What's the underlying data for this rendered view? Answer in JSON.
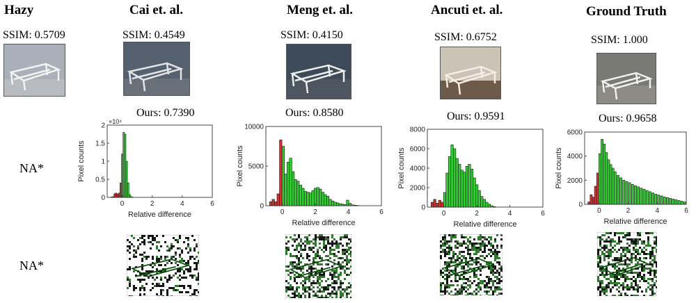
{
  "columns": [
    {
      "key": "hazy",
      "title": "Hazy",
      "ssim": "SSIM: 0.5709"
    },
    {
      "key": "cai",
      "title": "Cai et. al.",
      "ssim": "SSIM: 0.4549",
      "ours": "Ours: 0.7390"
    },
    {
      "key": "meng",
      "title": "Meng et. al.",
      "ssim": "SSIM: 0.4150",
      "ours": "Ours: 0.8580"
    },
    {
      "key": "ancuti",
      "title": "Ancuti et. al.",
      "ssim": "SSIM: 0.6752",
      "ours": "Ours: 0.9591"
    },
    {
      "key": "gt",
      "title": "Ground Truth",
      "ssim": "SSIM: 1.000",
      "ours": "Ours: 0.9658"
    }
  ],
  "na_labels": [
    "NA*",
    "NA*"
  ],
  "colors": {
    "positive_bar": "#33cc33",
    "negative_bar": "#cc3333",
    "axis": "#444444"
  },
  "chart_data": [
    {
      "type": "bar",
      "panel": "Cai et. al.",
      "xlabel": "Relative difference",
      "ylabel": "Pixel counts",
      "xlim": [
        -1,
        6
      ],
      "ylim": [
        0,
        20000
      ],
      "y_multiplier_label": "×10⁴",
      "xticks": [
        "0",
        "2",
        "4",
        "6"
      ],
      "yticks": [
        "0",
        "0.5",
        "1",
        "1.5",
        "2"
      ],
      "x": [
        -0.7,
        -0.6,
        -0.5,
        -0.4,
        -0.3,
        -0.2,
        -0.1,
        0.0,
        0.1,
        0.2,
        0.3,
        0.4,
        0.5,
        0.6,
        0.7
      ],
      "values": [
        100,
        200,
        1000,
        1200,
        900,
        1200,
        4000,
        12000,
        18000,
        17500,
        10000,
        4000,
        800,
        200,
        50
      ]
    },
    {
      "type": "bar",
      "panel": "Meng et. al.",
      "xlabel": "Relative difference",
      "ylabel": "Pixel counts",
      "xlim": [
        -1,
        6
      ],
      "ylim": [
        0,
        10000
      ],
      "xticks": [
        "0",
        "2",
        "4",
        "6"
      ],
      "yticks": [
        "0",
        "5000",
        "10000"
      ],
      "x": [
        -0.7,
        -0.55,
        -0.4,
        -0.25,
        -0.1,
        0.05,
        0.2,
        0.35,
        0.5,
        0.65,
        0.8,
        0.95,
        1.1,
        1.25,
        1.4,
        1.55,
        1.7,
        1.85,
        2.0,
        2.15,
        2.3,
        2.45,
        2.6,
        2.75,
        2.9,
        3.05,
        3.2,
        3.35,
        3.5,
        3.65,
        3.8,
        3.95,
        4.1,
        4.25,
        4.4,
        4.55
      ],
      "values": [
        500,
        800,
        500,
        1500,
        8300,
        7500,
        4000,
        5500,
        6000,
        4300,
        3300,
        3100,
        2600,
        2200,
        1800,
        1700,
        1600,
        1900,
        2200,
        2300,
        2100,
        1700,
        1400,
        1200,
        800,
        600,
        450,
        350,
        250,
        200,
        150,
        700,
        300,
        120,
        60,
        30
      ]
    },
    {
      "type": "bar",
      "panel": "Ancuti et. al.",
      "xlabel": "Relative difference",
      "ylabel": "Pixel counts",
      "xlim": [
        -1,
        6
      ],
      "ylim": [
        0,
        8000
      ],
      "xticks": [
        "0",
        "2",
        "4",
        "6"
      ],
      "yticks": [
        "0",
        "2000",
        "4000",
        "6000",
        "8000"
      ],
      "x": [
        -0.7,
        -0.55,
        -0.4,
        -0.25,
        -0.1,
        0.05,
        0.2,
        0.35,
        0.5,
        0.65,
        0.8,
        0.95,
        1.1,
        1.25,
        1.4,
        1.55,
        1.7,
        1.85,
        2.0,
        2.15,
        2.3,
        2.45,
        2.6,
        2.75,
        2.9,
        3.05
      ],
      "values": [
        500,
        800,
        400,
        700,
        500,
        1500,
        3500,
        5200,
        6400,
        6000,
        5000,
        4400,
        3800,
        3600,
        4200,
        4400,
        3900,
        3000,
        2300,
        1700,
        1100,
        800,
        500,
        300,
        150,
        50
      ]
    },
    {
      "type": "bar",
      "panel": "Ground Truth",
      "xlabel": "Relative difference",
      "ylabel": "Pixel counts",
      "xlim": [
        -1,
        6
      ],
      "ylim": [
        0,
        6000
      ],
      "xticks": [
        "0",
        "2",
        "4",
        "6"
      ],
      "yticks": [
        "0",
        "2000",
        "4000",
        "6000"
      ],
      "x": [
        -0.7,
        -0.55,
        -0.4,
        -0.25,
        -0.1,
        0.05,
        0.2,
        0.35,
        0.5,
        0.65,
        0.8,
        0.95,
        1.1,
        1.3,
        1.5,
        1.7,
        1.9,
        2.1,
        2.3,
        2.5,
        2.7,
        2.9,
        3.1,
        3.3,
        3.5,
        3.7,
        3.9,
        4.1,
        4.3,
        4.5,
        4.7,
        4.9,
        5.1,
        5.3,
        5.5,
        5.7,
        5.9
      ],
      "values": [
        200,
        800,
        600,
        1500,
        2600,
        4200,
        5400,
        5000,
        4300,
        3700,
        3300,
        3000,
        2700,
        2400,
        2200,
        2000,
        1900,
        1800,
        1650,
        1550,
        1450,
        1350,
        1250,
        1150,
        1050,
        950,
        850,
        780,
        700,
        620,
        560,
        500,
        440,
        380,
        320,
        260,
        200
      ]
    }
  ]
}
